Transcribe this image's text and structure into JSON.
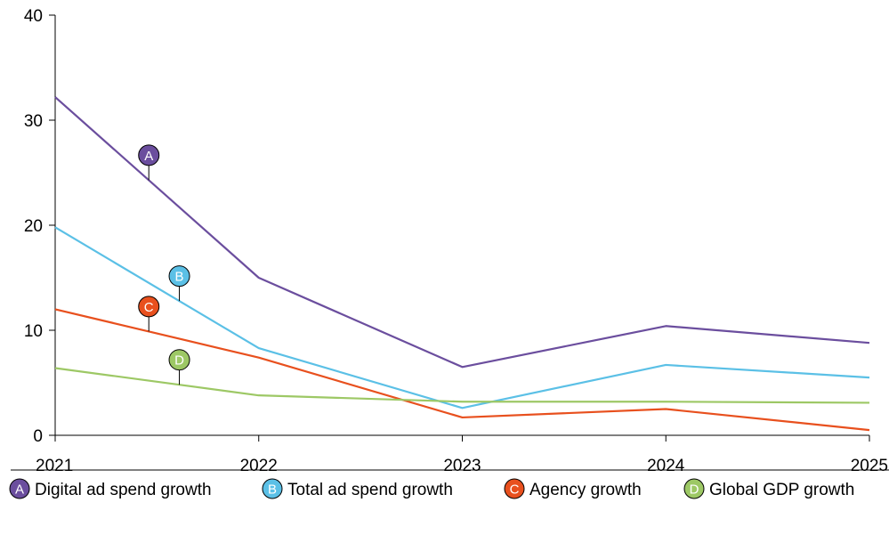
{
  "chart_data": {
    "type": "line",
    "x": [
      "2021",
      "2022",
      "2023",
      "2024",
      "2025"
    ],
    "ylim": [
      0,
      40
    ],
    "yticks": [
      "0",
      "10",
      "20",
      "30",
      "40"
    ],
    "grid": false,
    "legend_position": "bottom",
    "series": [
      {
        "key": "A",
        "name": "Digital ad spend growth",
        "color": "#6B4E9E",
        "values": [
          32.2,
          15.0,
          6.5,
          10.4,
          8.8
        ],
        "marker_x": 0.46,
        "marker_dy": 10
      },
      {
        "key": "B",
        "name": "Total ad spend growth",
        "color": "#5BC0E6",
        "values": [
          19.8,
          8.3,
          2.6,
          6.7,
          5.5
        ],
        "marker_x": 0.61,
        "marker_dy": 10
      },
      {
        "key": "C",
        "name": "Agency growth",
        "color": "#E8501E",
        "values": [
          12.0,
          7.4,
          1.7,
          2.5,
          0.5
        ],
        "marker_x": 0.46,
        "marker_dy": 10
      },
      {
        "key": "D",
        "name": "Global GDP growth",
        "color": "#9DC865",
        "values": [
          6.4,
          3.8,
          3.2,
          3.2,
          3.1
        ],
        "marker_x": 0.61,
        "marker_dy": 10
      }
    ]
  }
}
